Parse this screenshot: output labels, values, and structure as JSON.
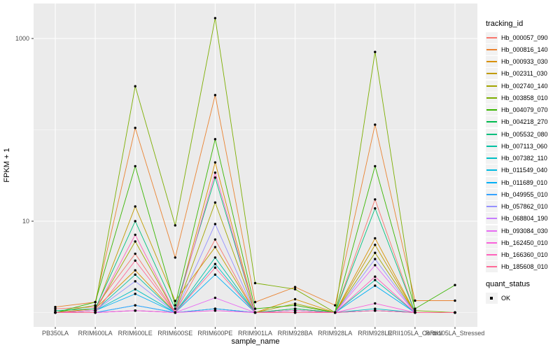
{
  "figure": {
    "background": "#FFFFFF",
    "panel_background": "#EBEBEB",
    "grid_color": "#FFFFFF",
    "point_color": "#000000",
    "axis_text_color": "#4D4D4D",
    "tick_color": "#333333"
  },
  "axes": {
    "x_title": "sample_name",
    "y_title": "FPKM + 1",
    "y_scale": "log10",
    "y_major_ticks": [
      {
        "label": "10",
        "value": 10
      },
      {
        "label": "1000",
        "value": 1000
      }
    ],
    "y_minor_breaks": [
      1,
      100
    ]
  },
  "legend": {
    "tracking_title": "tracking_id",
    "quant_title": "quant_status",
    "quant_items": [
      {
        "label": "OK",
        "marker": "square-point"
      }
    ]
  },
  "chart_data": {
    "type": "line",
    "title": "",
    "xlabel": "sample_name",
    "ylabel": "FPKM + 1",
    "y_axis": {
      "scale": "log10",
      "labeled_breaks": [
        10,
        1000
      ],
      "minor_breaks": [
        1,
        100
      ],
      "range": [
        0.9,
        1700
      ]
    },
    "legend_position": "right",
    "grid": true,
    "point_marker": "black-dot",
    "x_categories": [
      "PB350LA",
      "RRIM600LA",
      "RRIM600LE",
      "RRIM600SE",
      "RRIM600PE",
      "RRIM901LA",
      "RRIM928BA",
      "RRIM928LA",
      "RRIM928LE",
      "RRII105LA_Control",
      "RRII105LA_Stressed"
    ],
    "series": [
      {
        "name": "Hb_000057_090",
        "color": "#F8766D",
        "values": [
          1.1,
          1.15,
          4.4,
          1,
          6.3,
          1,
          1.1,
          1,
          17.3,
          1,
          1
        ]
      },
      {
        "name": "Hb_000816_140",
        "color": "#EA8331",
        "values": [
          1.15,
          1.3,
          105,
          4,
          240,
          1.3,
          1.9,
          1.2,
          114,
          1.35,
          1.35
        ]
      },
      {
        "name": "Hb_000933_030",
        "color": "#D89000",
        "values": [
          1,
          1.1,
          2.9,
          1,
          44,
          1,
          1.4,
          1,
          6.5,
          1,
          1
        ]
      },
      {
        "name": "Hb_002311_030",
        "color": "#C09B00",
        "values": [
          1,
          1.05,
          14.5,
          1.34,
          5.2,
          1,
          1.1,
          1,
          5.5,
          1,
          1
        ]
      },
      {
        "name": "Hb_002740_140",
        "color": "#A3A500",
        "values": [
          1,
          1.05,
          6,
          1,
          16,
          1,
          1.25,
          1,
          4.5,
          1,
          1
        ]
      },
      {
        "name": "Hb_003858_010",
        "color": "#7CAE00",
        "values": [
          1,
          1.2,
          300,
          9,
          1670,
          2.1,
          1.8,
          1,
          712,
          1.05,
          1
        ]
      },
      {
        "name": "Hb_004079_070",
        "color": "#39B600",
        "values": [
          1,
          1.3,
          40,
          1.2,
          79,
          1.1,
          1.2,
          1,
          40,
          1.1,
          2
        ]
      },
      {
        "name": "Hb_004218_270",
        "color": "#00BB4E",
        "values": [
          1,
          1,
          1.05,
          1,
          1.1,
          1,
          1,
          1,
          1.05,
          1,
          1
        ]
      },
      {
        "name": "Hb_005532_080",
        "color": "#00BF7D",
        "values": [
          1.05,
          1.1,
          10,
          1.1,
          30,
          1,
          1.1,
          1,
          13.8,
          1,
          1
        ]
      },
      {
        "name": "Hb_007113_060",
        "color": "#00C1A3",
        "values": [
          1,
          1.05,
          2.6,
          1,
          4,
          1,
          1.05,
          1,
          2.27,
          1,
          1
        ]
      },
      {
        "name": "Hb_007382_110",
        "color": "#00BFC4",
        "values": [
          1,
          1.05,
          1.8,
          1,
          3.4,
          1,
          1.05,
          1,
          1.1,
          1,
          1
        ]
      },
      {
        "name": "Hb_011549_040",
        "color": "#00BAE0",
        "values": [
          1,
          1,
          1.2,
          1,
          1.1,
          1,
          1,
          1,
          1.05,
          1,
          1
        ]
      },
      {
        "name": "Hb_011689_010",
        "color": "#00B0F6",
        "values": [
          1,
          1.05,
          1.6,
          1,
          2.6,
          1,
          1,
          1,
          1.97,
          1,
          1
        ]
      },
      {
        "name": "Hb_049955_010",
        "color": "#35A2FF",
        "values": [
          1,
          1,
          1.2,
          1,
          1.1,
          1,
          1,
          1,
          1.05,
          1,
          1
        ]
      },
      {
        "name": "Hb_057862_010",
        "color": "#9590FF",
        "values": [
          1,
          1.05,
          2.2,
          1,
          9.3,
          1,
          1.05,
          1,
          3.85,
          1,
          1
        ]
      },
      {
        "name": "Hb_068804_190",
        "color": "#C77CFF",
        "values": [
          1,
          1,
          1.05,
          1,
          1.05,
          1,
          1,
          1,
          1.05,
          1,
          1
        ]
      },
      {
        "name": "Hb_093084_030",
        "color": "#E76BF3",
        "values": [
          1,
          1,
          1.05,
          1,
          1.45,
          1,
          1,
          1,
          3.3,
          1,
          1
        ]
      },
      {
        "name": "Hb_162450_010",
        "color": "#FA62DB",
        "values": [
          1,
          1,
          1.05,
          1,
          1.05,
          1,
          1,
          1,
          1.26,
          1,
          1
        ]
      },
      {
        "name": "Hb_166360_010",
        "color": "#FF62BC",
        "values": [
          1,
          1.05,
          7.1,
          1,
          34,
          1,
          1.05,
          1,
          2.47,
          1,
          1
        ]
      },
      {
        "name": "Hb_185608_010",
        "color": "#FF6A98",
        "values": [
          1,
          1,
          3.7,
          1,
          3.1,
          1,
          1,
          1,
          1.05,
          1,
          1
        ]
      }
    ]
  }
}
